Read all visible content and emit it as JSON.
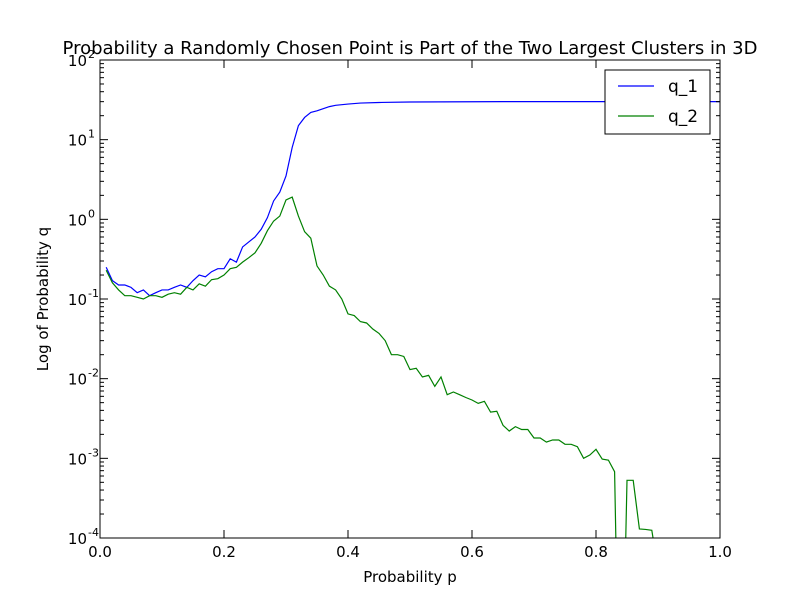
{
  "chart_data": {
    "type": "line",
    "title": "Probability a Randomly Chosen Point is Part of the Two Largest Clusters in 3D",
    "xlabel": "Probability p",
    "ylabel": "Log of Probability q",
    "xlim": [
      0.0,
      1.0
    ],
    "ylim": [
      0.0001,
      100
    ],
    "yscale": "log",
    "grid": false,
    "legend_position": "top-right",
    "x_ticks": [
      "0.0",
      "0.2",
      "0.4",
      "0.6",
      "0.8",
      "1.0"
    ],
    "y_ticks": [
      {
        "base": "10",
        "exp": "-4"
      },
      {
        "base": "10",
        "exp": "-3"
      },
      {
        "base": "10",
        "exp": "-2"
      },
      {
        "base": "10",
        "exp": "-1"
      },
      {
        "base": "10",
        "exp": "0"
      },
      {
        "base": "10",
        "exp": "1"
      },
      {
        "base": "10",
        "exp": "2"
      }
    ],
    "series": [
      {
        "name": "q_1",
        "color": "#0000ff",
        "points": [
          [
            0.01,
            0.25
          ],
          [
            0.02,
            0.17
          ],
          [
            0.03,
            0.15
          ],
          [
            0.04,
            0.15
          ],
          [
            0.05,
            0.14
          ],
          [
            0.06,
            0.12
          ],
          [
            0.07,
            0.13
          ],
          [
            0.08,
            0.11
          ],
          [
            0.09,
            0.12
          ],
          [
            0.1,
            0.13
          ],
          [
            0.11,
            0.13
          ],
          [
            0.12,
            0.14
          ],
          [
            0.13,
            0.15
          ],
          [
            0.14,
            0.14
          ],
          [
            0.15,
            0.17
          ],
          [
            0.16,
            0.2
          ],
          [
            0.17,
            0.19
          ],
          [
            0.18,
            0.22
          ],
          [
            0.19,
            0.24
          ],
          [
            0.2,
            0.24
          ],
          [
            0.21,
            0.32
          ],
          [
            0.22,
            0.29
          ],
          [
            0.23,
            0.45
          ],
          [
            0.24,
            0.52
          ],
          [
            0.25,
            0.6
          ],
          [
            0.26,
            0.75
          ],
          [
            0.27,
            1.05
          ],
          [
            0.28,
            1.7
          ],
          [
            0.29,
            2.2
          ],
          [
            0.3,
            3.5
          ],
          [
            0.31,
            8.0
          ],
          [
            0.32,
            15.0
          ],
          [
            0.33,
            19.0
          ],
          [
            0.34,
            22.0
          ],
          [
            0.35,
            23.0
          ],
          [
            0.36,
            24.5
          ],
          [
            0.37,
            26.0
          ],
          [
            0.38,
            27.0
          ],
          [
            0.4,
            28.0
          ],
          [
            0.42,
            28.8
          ],
          [
            0.45,
            29.3
          ],
          [
            0.5,
            29.7
          ],
          [
            0.55,
            29.8
          ],
          [
            0.6,
            29.9
          ],
          [
            0.65,
            30.0
          ],
          [
            0.7,
            30.0
          ],
          [
            0.75,
            30.0
          ],
          [
            0.8,
            30.0
          ],
          [
            0.85,
            30.0
          ],
          [
            0.9,
            30.0
          ],
          [
            0.95,
            30.0
          ],
          [
            1.0,
            30.0
          ]
        ]
      },
      {
        "name": "q_2",
        "color": "#008000",
        "points": [
          [
            0.01,
            0.23
          ],
          [
            0.02,
            0.16
          ],
          [
            0.03,
            0.13
          ],
          [
            0.04,
            0.11
          ],
          [
            0.05,
            0.11
          ],
          [
            0.06,
            0.105
          ],
          [
            0.07,
            0.1
          ],
          [
            0.08,
            0.11
          ],
          [
            0.09,
            0.11
          ],
          [
            0.1,
            0.105
          ],
          [
            0.11,
            0.115
          ],
          [
            0.12,
            0.12
          ],
          [
            0.13,
            0.115
          ],
          [
            0.14,
            0.14
          ],
          [
            0.15,
            0.13
          ],
          [
            0.16,
            0.155
          ],
          [
            0.17,
            0.145
          ],
          [
            0.18,
            0.175
          ],
          [
            0.19,
            0.18
          ],
          [
            0.2,
            0.2
          ],
          [
            0.21,
            0.24
          ],
          [
            0.22,
            0.25
          ],
          [
            0.23,
            0.29
          ],
          [
            0.24,
            0.33
          ],
          [
            0.25,
            0.38
          ],
          [
            0.26,
            0.5
          ],
          [
            0.27,
            0.72
          ],
          [
            0.28,
            0.95
          ],
          [
            0.29,
            1.1
          ],
          [
            0.3,
            1.75
          ],
          [
            0.31,
            1.9
          ],
          [
            0.32,
            1.1
          ],
          [
            0.33,
            0.7
          ],
          [
            0.34,
            0.58
          ],
          [
            0.35,
            0.26
          ],
          [
            0.36,
            0.2
          ],
          [
            0.37,
            0.145
          ],
          [
            0.38,
            0.13
          ],
          [
            0.39,
            0.1
          ],
          [
            0.4,
            0.065
          ],
          [
            0.41,
            0.062
          ],
          [
            0.42,
            0.052
          ],
          [
            0.43,
            0.05
          ],
          [
            0.44,
            0.042
          ],
          [
            0.45,
            0.037
          ],
          [
            0.46,
            0.03
          ],
          [
            0.47,
            0.02
          ],
          [
            0.48,
            0.02
          ],
          [
            0.49,
            0.019
          ],
          [
            0.5,
            0.013
          ],
          [
            0.51,
            0.0135
          ],
          [
            0.52,
            0.0105
          ],
          [
            0.53,
            0.011
          ],
          [
            0.54,
            0.008
          ],
          [
            0.55,
            0.0105
          ],
          [
            0.56,
            0.0063
          ],
          [
            0.57,
            0.0068
          ],
          [
            0.58,
            0.0063
          ],
          [
            0.59,
            0.0058
          ],
          [
            0.6,
            0.0054
          ],
          [
            0.61,
            0.0049
          ],
          [
            0.62,
            0.0052
          ],
          [
            0.63,
            0.0038
          ],
          [
            0.64,
            0.0039
          ],
          [
            0.65,
            0.0026
          ],
          [
            0.66,
            0.0022
          ],
          [
            0.67,
            0.0025
          ],
          [
            0.68,
            0.0023
          ],
          [
            0.69,
            0.0023
          ],
          [
            0.7,
            0.0018
          ],
          [
            0.71,
            0.0018
          ],
          [
            0.72,
            0.0016
          ],
          [
            0.73,
            0.0017
          ],
          [
            0.74,
            0.0017
          ],
          [
            0.75,
            0.0015
          ],
          [
            0.76,
            0.0015
          ],
          [
            0.77,
            0.0014
          ],
          [
            0.78,
            0.001
          ],
          [
            0.79,
            0.0011
          ],
          [
            0.8,
            0.0013
          ],
          [
            0.81,
            0.00098
          ],
          [
            0.82,
            0.00095
          ],
          [
            0.83,
            0.00068
          ],
          [
            0.832,
            0.0001
          ],
          null,
          [
            0.848,
            0.0001
          ],
          [
            0.85,
            0.00053
          ],
          [
            0.86,
            0.00053
          ],
          [
            0.87,
            0.00013
          ],
          [
            0.88,
            0.000128
          ],
          [
            0.89,
            0.000125
          ],
          [
            0.892,
            0.0001
          ]
        ]
      }
    ]
  }
}
